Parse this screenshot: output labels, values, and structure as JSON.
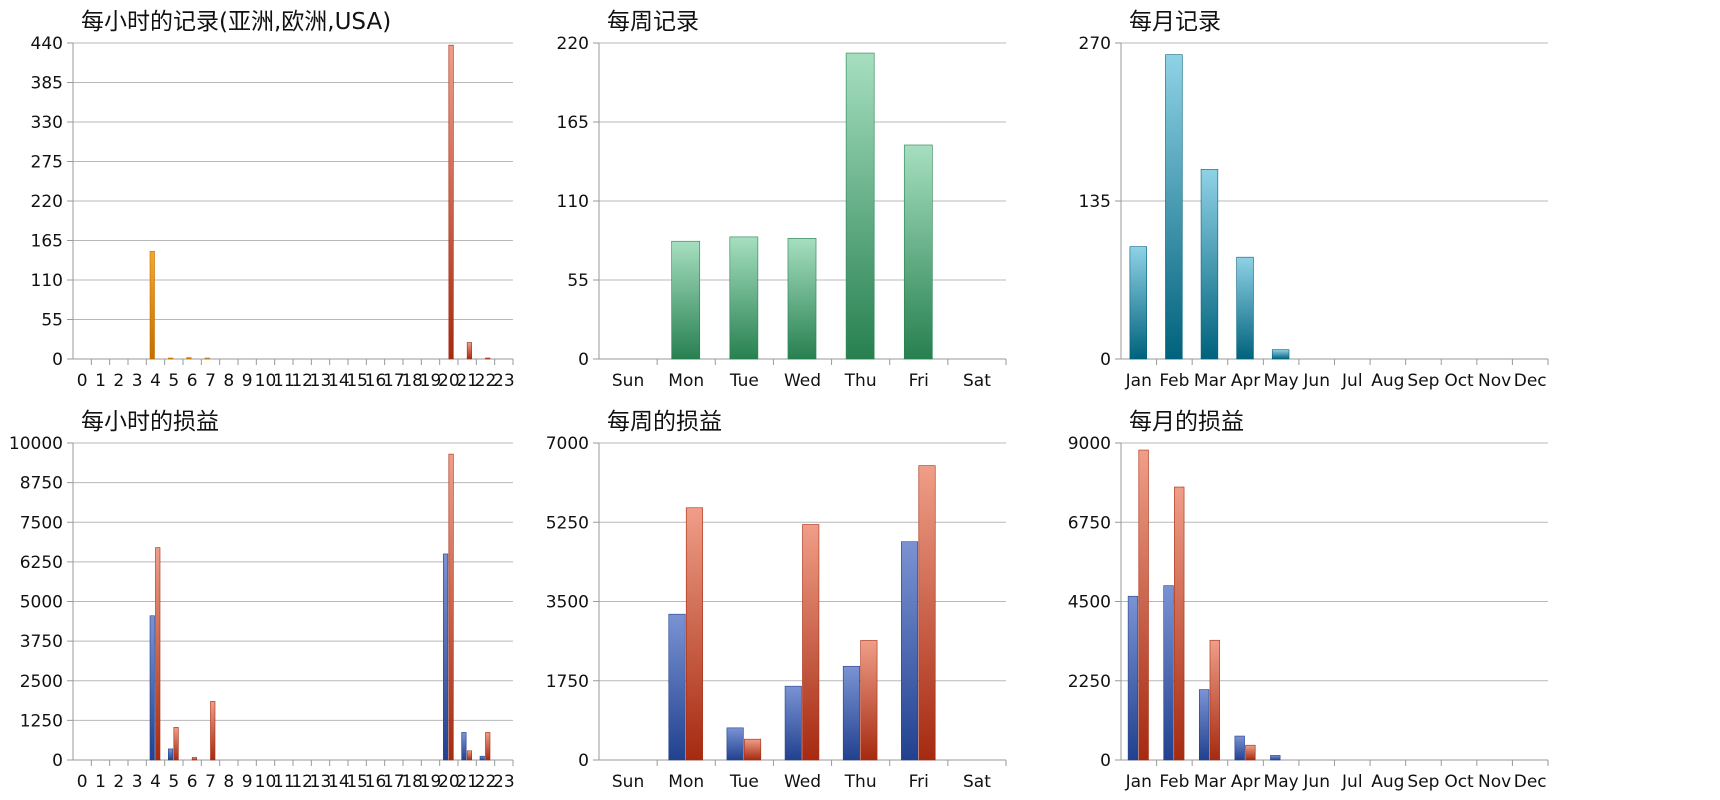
{
  "colors": {
    "orange": [
      "#f3a830",
      "#c46f00"
    ],
    "red": [
      "#f09e88",
      "#a52a10"
    ],
    "green": [
      "#a6dfc0",
      "#278050"
    ],
    "teal": [
      "#8fd2e6",
      "#00627c"
    ],
    "blue": [
      "#7b93d3",
      "#21418f"
    ]
  },
  "chart_data": [
    {
      "type": "bar",
      "title": "每小时的记录(亚洲,欧洲,USA)",
      "categories": [
        "0",
        "1",
        "2",
        "3",
        "4",
        "5",
        "6",
        "7",
        "8",
        "9",
        "10",
        "11",
        "12",
        "13",
        "14",
        "15",
        "16",
        "17",
        "18",
        "19",
        "20",
        "21",
        "22",
        "23"
      ],
      "yticks": [
        "0",
        "55",
        "110",
        "165",
        "220",
        "275",
        "330",
        "385",
        "440"
      ],
      "ylim": [
        0,
        440
      ],
      "series": [
        {
          "values": [
            0,
            0,
            0,
            0,
            150,
            1,
            2,
            1,
            0,
            0,
            0,
            0,
            0,
            0,
            0,
            0,
            0,
            0,
            0,
            0,
            0,
            0,
            0,
            0
          ],
          "color": "orange"
        },
        {
          "values": [
            0,
            0,
            0,
            0,
            0,
            0,
            0,
            0,
            0,
            0,
            0,
            0,
            0,
            0,
            0,
            0,
            0,
            0,
            0,
            0,
            437,
            23,
            1,
            0
          ],
          "color": "red"
        }
      ]
    },
    {
      "type": "bar",
      "title": "每周记录",
      "categories": [
        "Sun",
        "Mon",
        "Tue",
        "Wed",
        "Thu",
        "Fri",
        "Sat"
      ],
      "yticks": [
        "0",
        "55",
        "110",
        "165",
        "220"
      ],
      "ylim": [
        0,
        220
      ],
      "series": [
        {
          "values": [
            0,
            82,
            85,
            84,
            213,
            149,
            0
          ],
          "color": "green"
        }
      ]
    },
    {
      "type": "bar",
      "title": "每月记录",
      "categories": [
        "Jan",
        "Feb",
        "Mar",
        "Apr",
        "May",
        "Jun",
        "Jul",
        "Aug",
        "Sep",
        "Oct",
        "Nov",
        "Dec"
      ],
      "yticks": [
        "0",
        "135",
        "270"
      ],
      "ylim": [
        0,
        270
      ],
      "series": [
        {
          "values": [
            96,
            260,
            162,
            87,
            8,
            0,
            0,
            0,
            0,
            0,
            0,
            0
          ],
          "color": "teal"
        }
      ]
    },
    {
      "type": "bar",
      "title": "每小时的损益",
      "categories": [
        "0",
        "1",
        "2",
        "3",
        "4",
        "5",
        "6",
        "7",
        "8",
        "9",
        "10",
        "11",
        "12",
        "13",
        "14",
        "15",
        "16",
        "17",
        "18",
        "19",
        "20",
        "21",
        "22",
        "23"
      ],
      "yticks": [
        "0",
        "1250",
        "2500",
        "3750",
        "5000",
        "6250",
        "7500",
        "8750",
        "10000"
      ],
      "ylim": [
        0,
        10000
      ],
      "series": [
        {
          "values": [
            0,
            0,
            0,
            0,
            4550,
            350,
            0,
            0,
            0,
            0,
            0,
            0,
            0,
            0,
            0,
            0,
            0,
            0,
            0,
            0,
            6500,
            870,
            120,
            0
          ],
          "color": "blue"
        },
        {
          "values": [
            0,
            0,
            0,
            0,
            6700,
            1030,
            80,
            1850,
            0,
            0,
            0,
            0,
            0,
            0,
            0,
            0,
            0,
            0,
            0,
            0,
            9650,
            290,
            870,
            0
          ],
          "color": "red"
        }
      ]
    },
    {
      "type": "bar",
      "title": "每周的损益",
      "categories": [
        "Sun",
        "Mon",
        "Tue",
        "Wed",
        "Thu",
        "Fri",
        "Sat"
      ],
      "yticks": [
        "0",
        "1750",
        "3500",
        "5250",
        "7000"
      ],
      "ylim": [
        0,
        7000
      ],
      "series": [
        {
          "values": [
            0,
            3220,
            710,
            1630,
            2070,
            4820,
            0
          ],
          "color": "blue"
        },
        {
          "values": [
            0,
            5570,
            460,
            5200,
            2640,
            6500,
            0
          ],
          "color": "red"
        }
      ]
    },
    {
      "type": "bar",
      "title": "每月的损益",
      "categories": [
        "Jan",
        "Feb",
        "Mar",
        "Apr",
        "May",
        "Jun",
        "Jul",
        "Aug",
        "Sep",
        "Oct",
        "Nov",
        "Dec"
      ],
      "yticks": [
        "0",
        "2250",
        "4500",
        "6750",
        "9000"
      ],
      "ylim": [
        0,
        9000
      ],
      "series": [
        {
          "values": [
            4650,
            4950,
            2000,
            680,
            130,
            0,
            0,
            0,
            0,
            0,
            0,
            0
          ],
          "color": "blue"
        },
        {
          "values": [
            8800,
            7750,
            3400,
            420,
            0,
            0,
            0,
            0,
            0,
            0,
            0,
            0
          ],
          "color": "red"
        }
      ]
    }
  ]
}
